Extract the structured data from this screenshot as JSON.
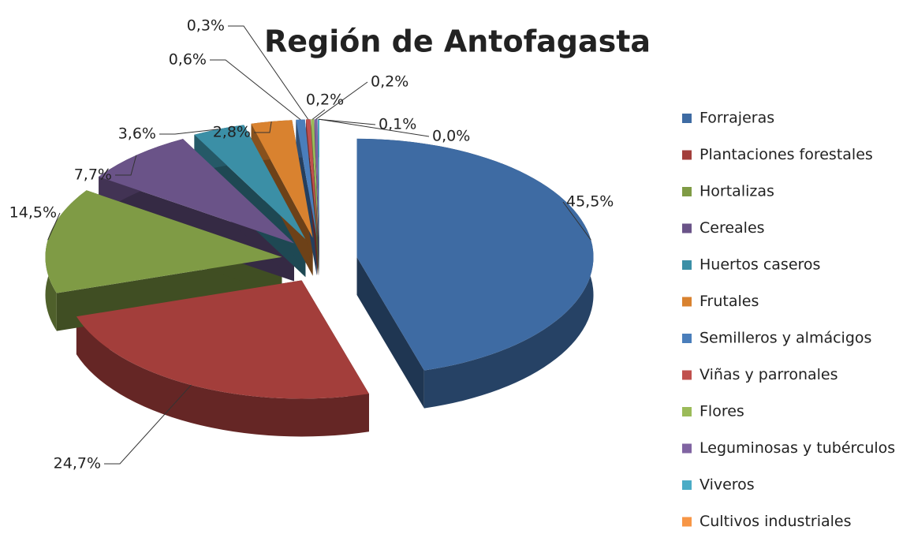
{
  "chart_data": {
    "type": "pie",
    "title": "Región de Antofagasta",
    "categories": [
      "Forrajeras",
      "Plantaciones forestales",
      "Hortalizas",
      "Cereales",
      "Huertos caseros",
      "Frutales",
      "Semilleros y almácigos",
      "Viñas y parronales",
      "Flores",
      "Leguminosas y tubérculos",
      "Viveros",
      "Cultivos industriales"
    ],
    "values": [
      45.5,
      24.7,
      14.5,
      7.7,
      3.6,
      2.8,
      0.6,
      0.3,
      0.2,
      0.2,
      0.1,
      0.0
    ],
    "value_labels": [
      "45,5%",
      "24,7%",
      "14,5%",
      "7,7%",
      "3,6%",
      "2,8%",
      "0,6%",
      "0,3%",
      "0,2%",
      "0,2%",
      "0,1%",
      "0,0%"
    ],
    "colors": [
      "#3e6ba3",
      "#a33e3b",
      "#7f9b45",
      "#6a5388",
      "#3b8fa6",
      "#d9822f",
      "#4a7ebb",
      "#c0504d",
      "#9bbb59",
      "#8064a2",
      "#4bacc6",
      "#f79646"
    ],
    "legend": "right"
  }
}
